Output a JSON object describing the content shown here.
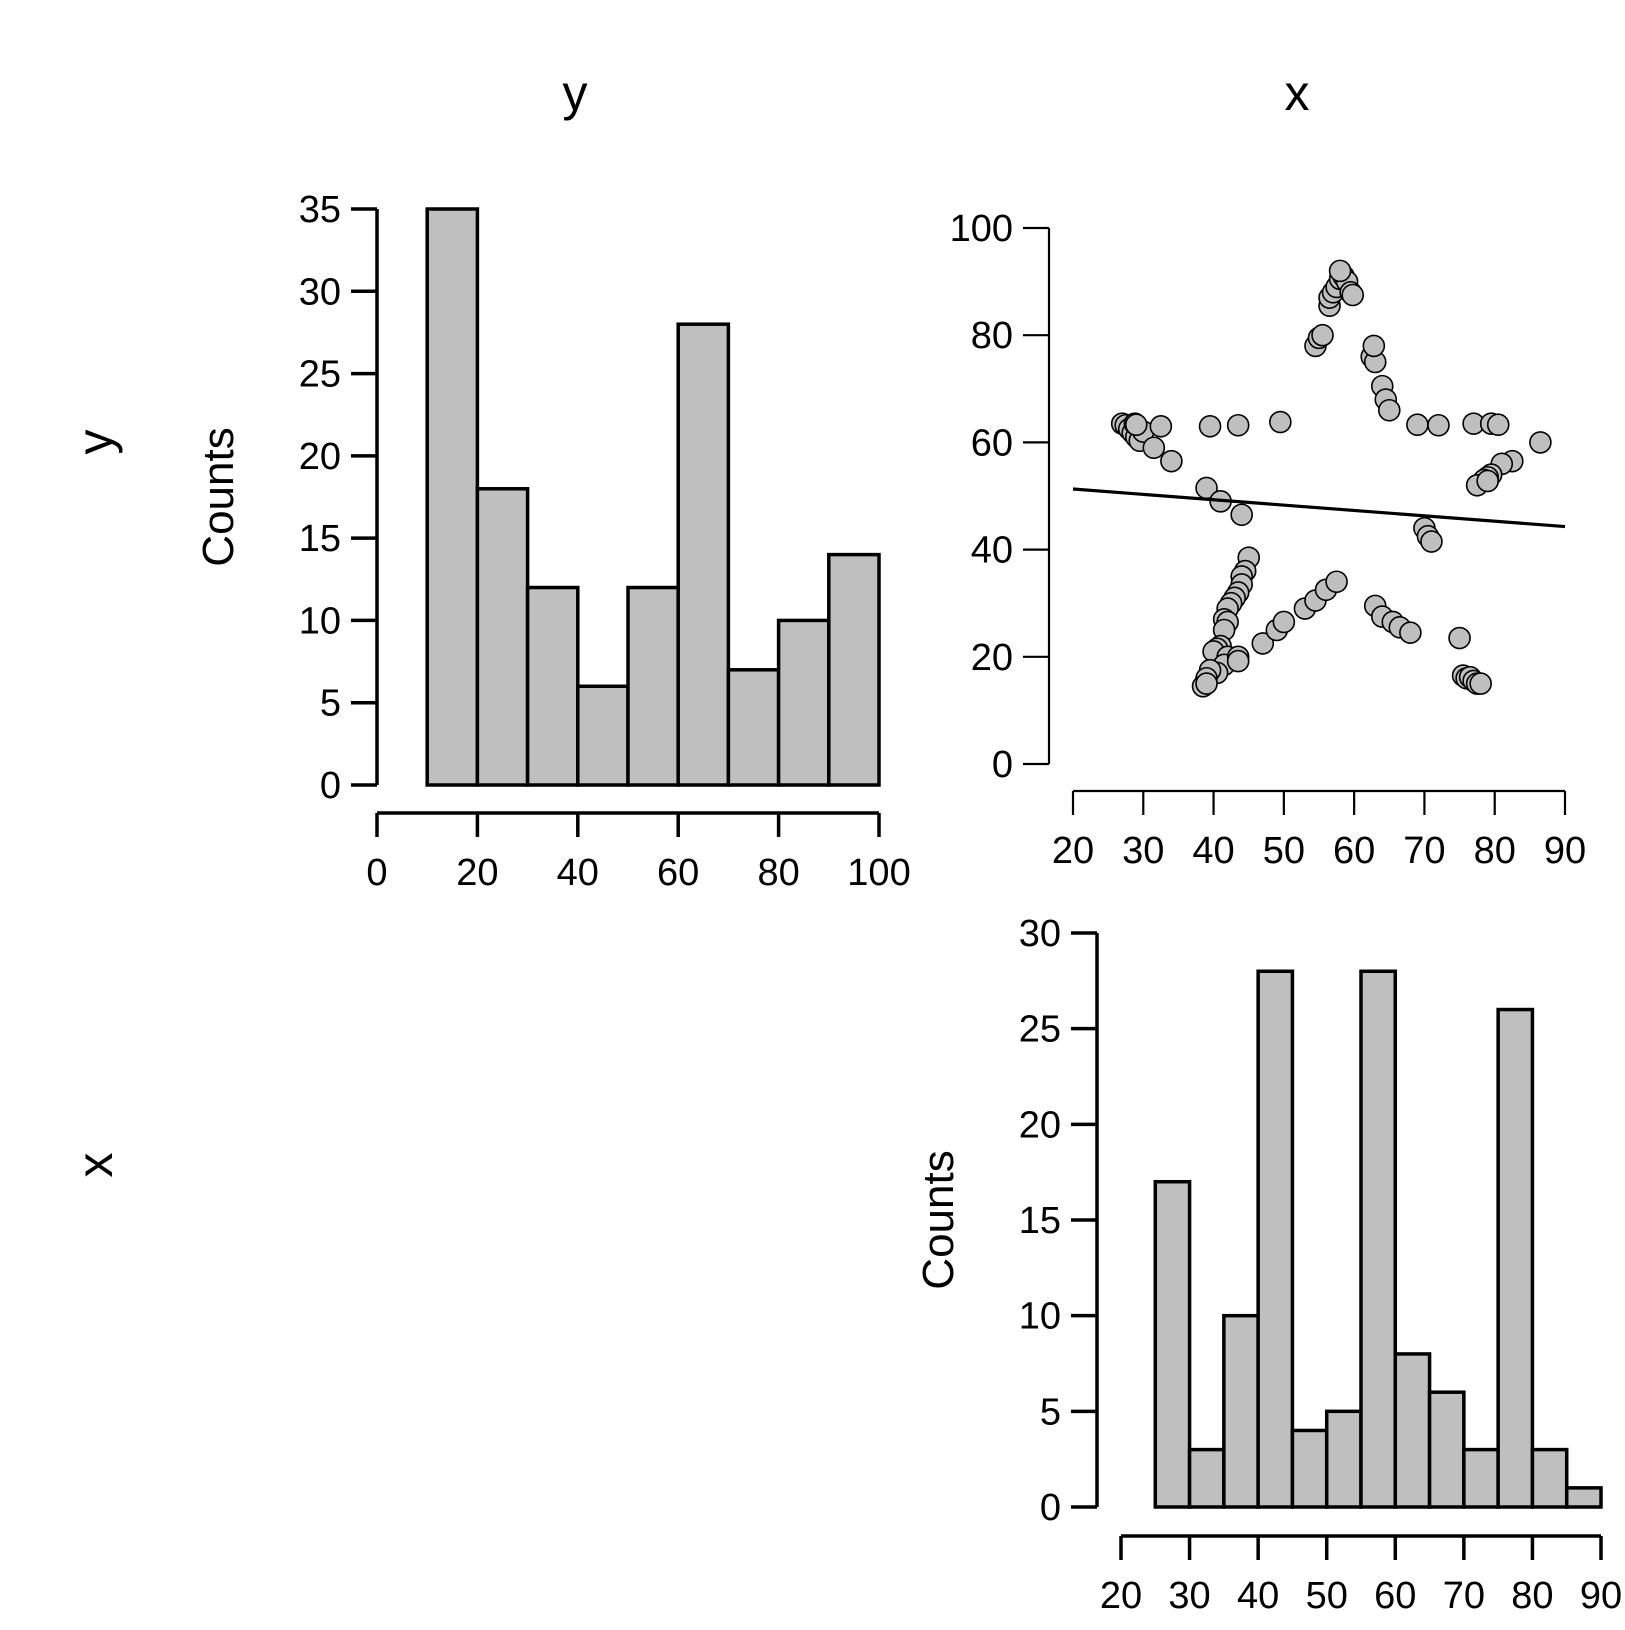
{
  "matrix": {
    "column_labels": [
      "y",
      "x"
    ],
    "row_labels": [
      "y",
      "x"
    ],
    "bar_fill": "#bfbfbf",
    "point_fill": "#bfbfbf",
    "line_color": "#000000"
  },
  "chart_data": [
    {
      "id": "hist-y",
      "type": "bar",
      "ylabel": "Counts",
      "bin_edges": [
        10,
        20,
        30,
        40,
        50,
        60,
        70,
        80,
        90,
        100
      ],
      "values": [
        35,
        18,
        12,
        6,
        12,
        28,
        7,
        10,
        14
      ],
      "xlim": [
        0,
        100
      ],
      "ylim": [
        0,
        35
      ],
      "xticks": [
        0,
        20,
        40,
        60,
        80,
        100
      ],
      "yticks": [
        0,
        5,
        10,
        15,
        20,
        25,
        30,
        35
      ]
    },
    {
      "id": "scatter-xy",
      "type": "scatter",
      "xlim": [
        20,
        90
      ],
      "ylim": [
        0,
        100
      ],
      "xticks": [
        20,
        30,
        40,
        50,
        60,
        70,
        80,
        90
      ],
      "yticks": [
        0,
        20,
        40,
        60,
        80,
        100
      ],
      "trend_line": {
        "x": [
          20,
          90
        ],
        "y": [
          51.3,
          44.3
        ]
      },
      "points": [
        [
          27.0,
          63.5
        ],
        [
          27.5,
          63.2
        ],
        [
          28.0,
          62.5
        ],
        [
          28.5,
          61.8
        ],
        [
          29.0,
          61.0
        ],
        [
          29.5,
          60.3
        ],
        [
          28.8,
          63.5
        ],
        [
          30.0,
          62.0
        ],
        [
          31.5,
          59.0
        ],
        [
          32.5,
          63.0
        ],
        [
          34.0,
          56.5
        ],
        [
          29.0,
          63.3
        ],
        [
          39.5,
          63.0
        ],
        [
          43.5,
          63.2
        ],
        [
          49.5,
          63.8
        ],
        [
          69.0,
          63.3
        ],
        [
          72.0,
          63.2
        ],
        [
          77.0,
          63.5
        ],
        [
          79.5,
          63.5
        ],
        [
          80.5,
          63.3
        ],
        [
          86.5,
          60.0
        ],
        [
          82.5,
          56.5
        ],
        [
          81.0,
          56.0
        ],
        [
          79.5,
          54.0
        ],
        [
          79.0,
          53.5
        ],
        [
          78.5,
          53.0
        ],
        [
          77.5,
          52.0
        ],
        [
          79.0,
          52.8
        ],
        [
          39.0,
          51.5
        ],
        [
          41.0,
          49.0
        ],
        [
          44.0,
          46.5
        ],
        [
          70.0,
          44.0
        ],
        [
          70.5,
          42.5
        ],
        [
          71.0,
          41.5
        ],
        [
          45.0,
          38.5
        ],
        [
          44.5,
          36.0
        ],
        [
          44.0,
          35.0
        ],
        [
          44.0,
          33.5
        ],
        [
          43.5,
          32.0
        ],
        [
          43.0,
          31.0
        ],
        [
          42.5,
          30.0
        ],
        [
          42.0,
          29.0
        ],
        [
          41.5,
          27.0
        ],
        [
          42.0,
          26.5
        ],
        [
          41.5,
          25.0
        ],
        [
          41.0,
          22.0
        ],
        [
          40.5,
          21.5
        ],
        [
          40.0,
          21.0
        ],
        [
          42.0,
          20.0
        ],
        [
          41.5,
          18.5
        ],
        [
          40.5,
          17.0
        ],
        [
          39.5,
          17.5
        ],
        [
          39.0,
          16.0
        ],
        [
          38.5,
          14.5
        ],
        [
          39.0,
          15.0
        ],
        [
          43.5,
          20.0
        ],
        [
          43.5,
          19.2
        ],
        [
          47.0,
          22.5
        ],
        [
          49.0,
          25.0
        ],
        [
          50.0,
          26.5
        ],
        [
          53.0,
          29.0
        ],
        [
          54.5,
          30.5
        ],
        [
          56.0,
          32.5
        ],
        [
          57.5,
          34.0
        ],
        [
          63.0,
          29.5
        ],
        [
          64.0,
          27.5
        ],
        [
          65.5,
          26.5
        ],
        [
          66.5,
          25.5
        ],
        [
          68.0,
          24.5
        ],
        [
          75.0,
          23.5
        ],
        [
          75.5,
          16.5
        ],
        [
          76.0,
          16.0
        ],
        [
          76.5,
          16.2
        ],
        [
          77.0,
          15.5
        ],
        [
          77.5,
          15.0
        ],
        [
          78.0,
          15.0
        ],
        [
          54.5,
          78.0
        ],
        [
          55.0,
          79.5
        ],
        [
          55.5,
          80.0
        ],
        [
          56.5,
          85.5
        ],
        [
          56.5,
          87.0
        ],
        [
          57.0,
          88.0
        ],
        [
          57.5,
          89.0
        ],
        [
          58.0,
          90.5
        ],
        [
          58.5,
          91.0
        ],
        [
          59.0,
          90.0
        ],
        [
          59.5,
          88.0
        ],
        [
          59.8,
          87.5
        ],
        [
          58.0,
          92.0
        ],
        [
          62.5,
          76.0
        ],
        [
          63.0,
          75.0
        ],
        [
          62.8,
          78.0
        ],
        [
          64.0,
          70.5
        ],
        [
          64.5,
          68.0
        ],
        [
          65.0,
          66.0
        ]
      ]
    },
    {
      "id": "hist-x",
      "type": "bar",
      "ylabel": "Counts",
      "bin_edges": [
        25,
        30,
        35,
        40,
        45,
        50,
        55,
        60,
        65,
        70,
        75,
        80,
        85,
        90
      ],
      "values": [
        17,
        3,
        10,
        28,
        4,
        5,
        28,
        8,
        6,
        3,
        26,
        3,
        1
      ],
      "xlim": [
        20,
        90
      ],
      "ylim": [
        0,
        30
      ],
      "xticks": [
        20,
        30,
        40,
        50,
        60,
        70,
        80,
        90
      ],
      "yticks": [
        0,
        5,
        10,
        15,
        20,
        25,
        30
      ]
    }
  ]
}
